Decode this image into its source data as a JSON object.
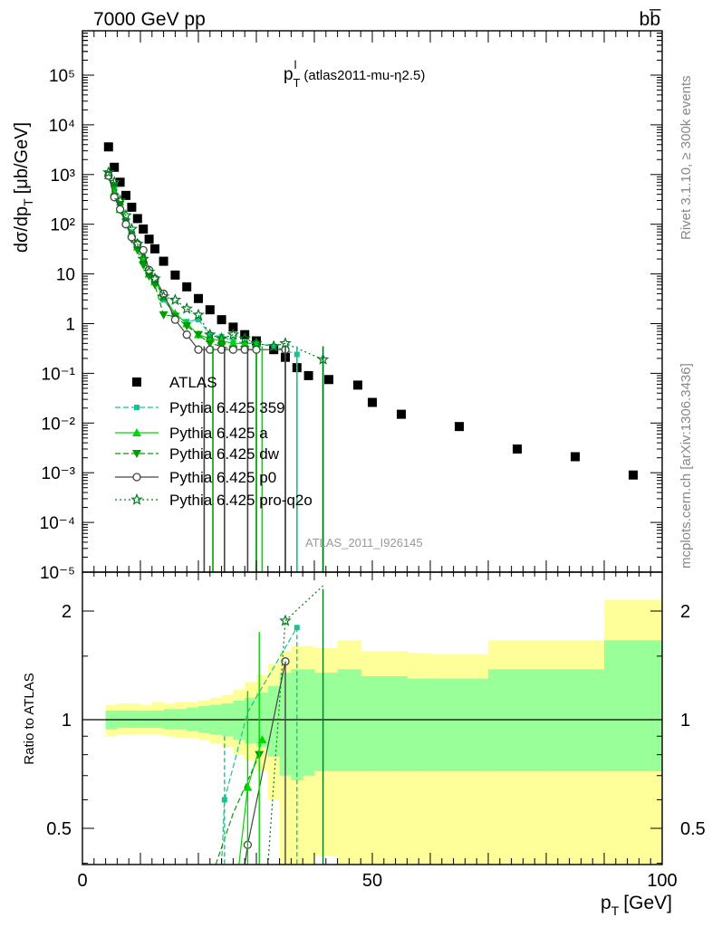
{
  "header": {
    "energy_label": "7000 GeV pp",
    "process_label": "bb̅"
  },
  "side_labels": {
    "rivet": "Rivet 3.1.10, ≥ 300k events",
    "mcplots": "mcplots.cern.ch [arXiv:1306.3436]"
  },
  "chart_data": [
    {
      "type": "scatter",
      "title": "p_T^l (atlas2011-mu-η2.5)",
      "title_main": "p",
      "title_sub": "T",
      "title_sup": "l",
      "title_rest": "(atlas2011-mu-η2.5)",
      "ylabel": "dσ/dp_T [μb/GeV]",
      "ylabel_a": "dσ/dp",
      "ylabel_sub": "T",
      "ylabel_b": "[μb/GeV]",
      "yscale": "log",
      "ylim": [
        1e-05,
        1000000
      ],
      "xlim": [
        0,
        100
      ],
      "y_tick_labels": [
        "10⁻⁵",
        "10⁻⁴",
        "10⁻³",
        "10⁻²",
        "10⁻¹",
        "1",
        "10",
        "10²",
        "10³",
        "10⁴",
        "10⁵"
      ],
      "analysis_label": "ATLAS_2011_I926145",
      "legend_position": "center-left",
      "series": [
        {
          "name": "ATLAS",
          "color": "#000000",
          "marker": "square",
          "x": [
            4.5,
            5.5,
            6.5,
            7.5,
            8.5,
            9.5,
            10.5,
            11.5,
            12.5,
            14,
            16,
            18,
            20,
            22,
            24,
            26,
            28,
            30,
            33,
            35,
            37,
            39,
            42.5,
            47.5,
            50,
            55,
            65,
            75,
            85,
            95
          ],
          "y": [
            3600,
            1400,
            700,
            380,
            220,
            130,
            80,
            50,
            32,
            18,
            9.5,
            5.5,
            3.2,
            1.9,
            1.2,
            0.85,
            0.6,
            0.45,
            0.3,
            0.21,
            0.13,
            0.09,
            0.075,
            0.058,
            0.026,
            0.015,
            0.0085,
            0.003,
            0.0021,
            0.0009
          ]
        },
        {
          "name": "Pythia 6.425 359",
          "color": "#17c48f",
          "marker": "small-square",
          "dash": "6,3",
          "x": [
            4.5,
            5.5,
            6.5,
            7.5,
            8.5,
            9.5,
            10.5,
            11.5,
            12.5,
            14,
            16,
            18,
            20,
            22,
            24,
            26,
            28,
            30,
            33,
            37
          ],
          "y": [
            900,
            500,
            220,
            120,
            70,
            38,
            22,
            12,
            8,
            3,
            1.5,
            1.1,
            1.2,
            0.6,
            0.55,
            0.45,
            0.4,
            0.4,
            0.35,
            0.24
          ]
        },
        {
          "name": "Pythia 6.425 a",
          "color": "#00d600",
          "marker": "triangle-up",
          "x": [
            4.5,
            5.5,
            6.5,
            7.5,
            8.5,
            9.5,
            10.5,
            11.5,
            12.5,
            14,
            16,
            18,
            20,
            22,
            24,
            26,
            28,
            30
          ],
          "y": [
            950,
            450,
            200,
            110,
            60,
            35,
            20,
            10,
            7,
            3.5,
            1.6,
            1.0,
            0.6,
            0.5,
            0.45,
            0.4,
            0.4,
            0.4
          ]
        },
        {
          "name": "Pythia 6.425 dw",
          "color": "#009e00",
          "marker": "triangle-down",
          "dash": "6,3",
          "x": [
            4.5,
            5.5,
            6.5,
            7.5,
            8.5,
            9.5,
            10.5,
            11.5,
            12.5,
            14,
            16,
            18,
            20,
            22,
            24,
            26,
            28,
            30
          ],
          "y": [
            1000,
            600,
            250,
            110,
            50,
            30,
            15,
            9,
            6,
            1.5,
            1.4,
            0.9,
            0.6,
            0.4,
            0.35,
            0.3,
            0.3,
            0.3
          ]
        },
        {
          "name": "Pythia 6.425 p0",
          "color": "#444444",
          "marker": "open-circle",
          "x": [
            4.5,
            5.5,
            6.5,
            7.5,
            8.5,
            9.5,
            10.5,
            11.5,
            12.5,
            14,
            16,
            18,
            20,
            22,
            24,
            26,
            28,
            30,
            35
          ],
          "y": [
            950,
            350,
            200,
            100,
            55,
            40,
            30,
            12,
            8,
            4,
            1.2,
            0.6,
            0.3,
            0.3,
            0.3,
            0.3,
            0.3,
            0.3,
            0.3
          ]
        },
        {
          "name": "Pythia 6.425 pro-q2o",
          "color": "#007a1e",
          "marker": "open-star",
          "dash": "2,3",
          "x": [
            4.5,
            5.5,
            6.5,
            7.5,
            8.5,
            9.5,
            10.5,
            11.5,
            12.5,
            14,
            16,
            18,
            20,
            22,
            24,
            26,
            28,
            30,
            33,
            35,
            41.5
          ],
          "y": [
            1100,
            700,
            300,
            150,
            80,
            40,
            20,
            11,
            8,
            3.5,
            3,
            2,
            1.5,
            0.6,
            0.5,
            0.6,
            0.5,
            0.4,
            0.35,
            0.4,
            0.19
          ]
        }
      ]
    },
    {
      "type": "line",
      "ylabel": "Ratio to ATLAS",
      "xlabel": "p_T [GeV]",
      "xlabel_a": "p",
      "xlabel_sub": "T",
      "xlabel_b": "[GeV]",
      "xlim": [
        0,
        100
      ],
      "ylim": [
        0.35,
        2.3
      ],
      "x_ticks": [
        0,
        50,
        100
      ],
      "y_ticks": [
        0.5,
        1,
        2
      ],
      "reference_line": 1,
      "bands": {
        "x_edges": [
          4,
          6,
          8,
          10,
          12,
          14,
          16,
          18,
          20,
          22,
          24,
          26,
          28,
          30,
          32,
          34,
          36,
          38,
          40,
          44,
          48,
          52,
          56,
          60,
          70,
          80,
          90,
          100
        ],
        "yellow_lo": [
          0.9,
          0.91,
          0.91,
          0.91,
          0.91,
          0.9,
          0.89,
          0.89,
          0.88,
          0.86,
          0.84,
          0.8,
          0.77,
          0.72,
          0.6,
          0.35,
          0.35,
          0.35,
          0.42,
          0.35,
          0.35,
          0.35,
          0.35,
          0.35,
          0.35,
          0.35,
          0.35
        ],
        "yellow_hi": [
          1.1,
          1.11,
          1.11,
          1.1,
          1.12,
          1.11,
          1.12,
          1.12,
          1.13,
          1.15,
          1.17,
          1.21,
          1.27,
          1.33,
          1.43,
          1.55,
          1.6,
          1.6,
          1.58,
          1.66,
          1.55,
          1.55,
          1.53,
          1.52,
          1.66,
          1.66,
          2.15
        ],
        "green_lo": [
          0.94,
          0.95,
          0.95,
          0.95,
          0.95,
          0.94,
          0.94,
          0.93,
          0.92,
          0.91,
          0.9,
          0.88,
          0.86,
          0.84,
          0.79,
          0.7,
          0.68,
          0.7,
          0.72,
          0.72,
          0.72,
          0.72,
          0.72,
          0.72,
          0.72,
          0.72,
          0.72
        ],
        "green_hi": [
          1.06,
          1.06,
          1.06,
          1.06,
          1.06,
          1.07,
          1.07,
          1.08,
          1.09,
          1.1,
          1.11,
          1.13,
          1.15,
          1.19,
          1.24,
          1.35,
          1.38,
          1.38,
          1.35,
          1.38,
          1.32,
          1.32,
          1.3,
          1.3,
          1.38,
          1.38,
          1.66
        ]
      }
    }
  ]
}
